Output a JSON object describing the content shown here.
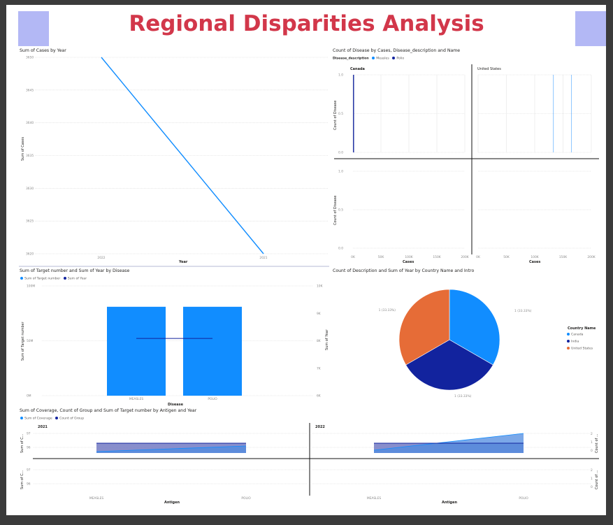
{
  "report": {
    "title": "Regional Disparities Analysis"
  },
  "colors": {
    "blue": "#118dff",
    "navy": "#12239e",
    "orange": "#e66c37",
    "title": "#d2374a",
    "logo": "#b3b8f5"
  },
  "icons": [
    "logo-placeholder-icon"
  ],
  "visuals": {
    "cases_by_year": {
      "title": "Sum of Cases by Year",
      "xlabel": "Year",
      "ylabel": "Sum of Cases"
    },
    "count_disease": {
      "title": "Count of Disease by Cases, Disease_description and Name",
      "legend_title": "Disease_description",
      "legend": [
        "Measles",
        "Polio"
      ],
      "panels": [
        "Canada",
        "United States"
      ],
      "ylabel": "Count of Disease",
      "xlabel": "Cases"
    },
    "target_year": {
      "title": "Sum of Target number and Sum of Year by Disease",
      "legend": [
        "Sum of Target number",
        "Sum of Year"
      ],
      "xlabel": "Disease",
      "ylabel_left": "Sum of Target number",
      "ylabel_right": "Sum of Year"
    },
    "description_pie": {
      "title": "Count of Description and Sum of Year by Country Name and Intro",
      "legend_title": "Country Name",
      "legend": [
        "Canada",
        "India",
        "United States"
      ],
      "labels": [
        "1 (33.33%)",
        "1 (33.33%)",
        "1 (33.33%)"
      ]
    },
    "coverage": {
      "title": "Sum of Coverage, Count of Group and Sum of Target number by Antigen and Year",
      "legend": [
        "Sum of Coverage",
        "Count of Group"
      ],
      "panels": [
        "2021",
        "2022"
      ],
      "xlabel": "Antigen",
      "ylabel_left": "Sum of C...",
      "ylabel_right": "Count of ..."
    }
  },
  "chart_data": [
    {
      "type": "line",
      "title": "Sum of Cases by Year",
      "xlabel": "Year",
      "ylabel": "Sum of Cases",
      "x": [
        "2022",
        "2021"
      ],
      "y_ticks": [
        "3650",
        "3645",
        "3640",
        "3635",
        "3630",
        "3625",
        "3620"
      ],
      "ylim": [
        3620,
        3650
      ],
      "series": [
        {
          "values": [
            3650,
            3620
          ]
        }
      ]
    },
    {
      "type": "bar",
      "title": "Count of Disease by Cases, Disease_description and Name",
      "xlabel": "Cases",
      "ylabel": "Count of Disease",
      "x_ticks": [
        "0K",
        "50K",
        "100K",
        "150K",
        "200K"
      ],
      "y_ticks_top": [
        "1.0",
        "0.5",
        "0.0"
      ],
      "y_ticks_bottom": [
        "1.0",
        "0.5",
        "0.0"
      ],
      "ylim": [
        0,
        1
      ],
      "xlim": [
        0,
        200000
      ],
      "panels": [
        {
          "name": "Canada",
          "points": [
            {
              "x": 1000,
              "y": 1,
              "series": "Polio"
            }
          ]
        },
        {
          "name": "United States",
          "points": [
            {
              "x": 133000,
              "y": 1,
              "series": "Measles"
            },
            {
              "x": 165000,
              "y": 1,
              "series": "Measles"
            }
          ]
        }
      ]
    },
    {
      "type": "bar",
      "title": "Sum of Target number and Sum of Year by Disease",
      "xlabel": "Disease",
      "categories": [
        "MEASLES",
        "POLIO"
      ],
      "y_ticks_left": [
        "100M",
        "50M",
        "0M"
      ],
      "y_ticks_right": [
        "10K",
        "9K",
        "8K",
        "7K",
        "6K"
      ],
      "ylim_left": [
        0,
        100000000
      ],
      "ylim_right": [
        6000,
        10000
      ],
      "series": [
        {
          "name": "Sum of Target number",
          "values": [
            81000000,
            81000000
          ]
        },
        {
          "name": "Sum of Year",
          "values": [
            8086,
            8086
          ]
        }
      ]
    },
    {
      "type": "pie",
      "title": "Count of Description and Sum of Year by Country Name and Intro",
      "categories": [
        "Canada",
        "India",
        "United States"
      ],
      "values": [
        1,
        1,
        1
      ]
    },
    {
      "type": "area",
      "title": "Sum of Coverage, Count of Group and Sum of Target number by Antigen and Year",
      "xlabel": "Antigen",
      "categories": [
        "MEASLES",
        "POLIO"
      ],
      "y_ticks_left": [
        "97",
        "96"
      ],
      "y_ticks_right": [
        "2",
        "1",
        "0"
      ],
      "panels": [
        {
          "name": "2021",
          "series": [
            {
              "name": "Sum of Coverage",
              "values": [
                96.1,
                96.5
              ]
            },
            {
              "name": "Count of Group",
              "values": [
                1,
                1
              ]
            }
          ]
        },
        {
          "name": "2022",
          "series": [
            {
              "name": "Sum of Coverage",
              "values": [
                96.2,
                97.4
              ]
            },
            {
              "name": "Count of Group",
              "values": [
                1,
                1
              ]
            }
          ]
        }
      ]
    }
  ]
}
